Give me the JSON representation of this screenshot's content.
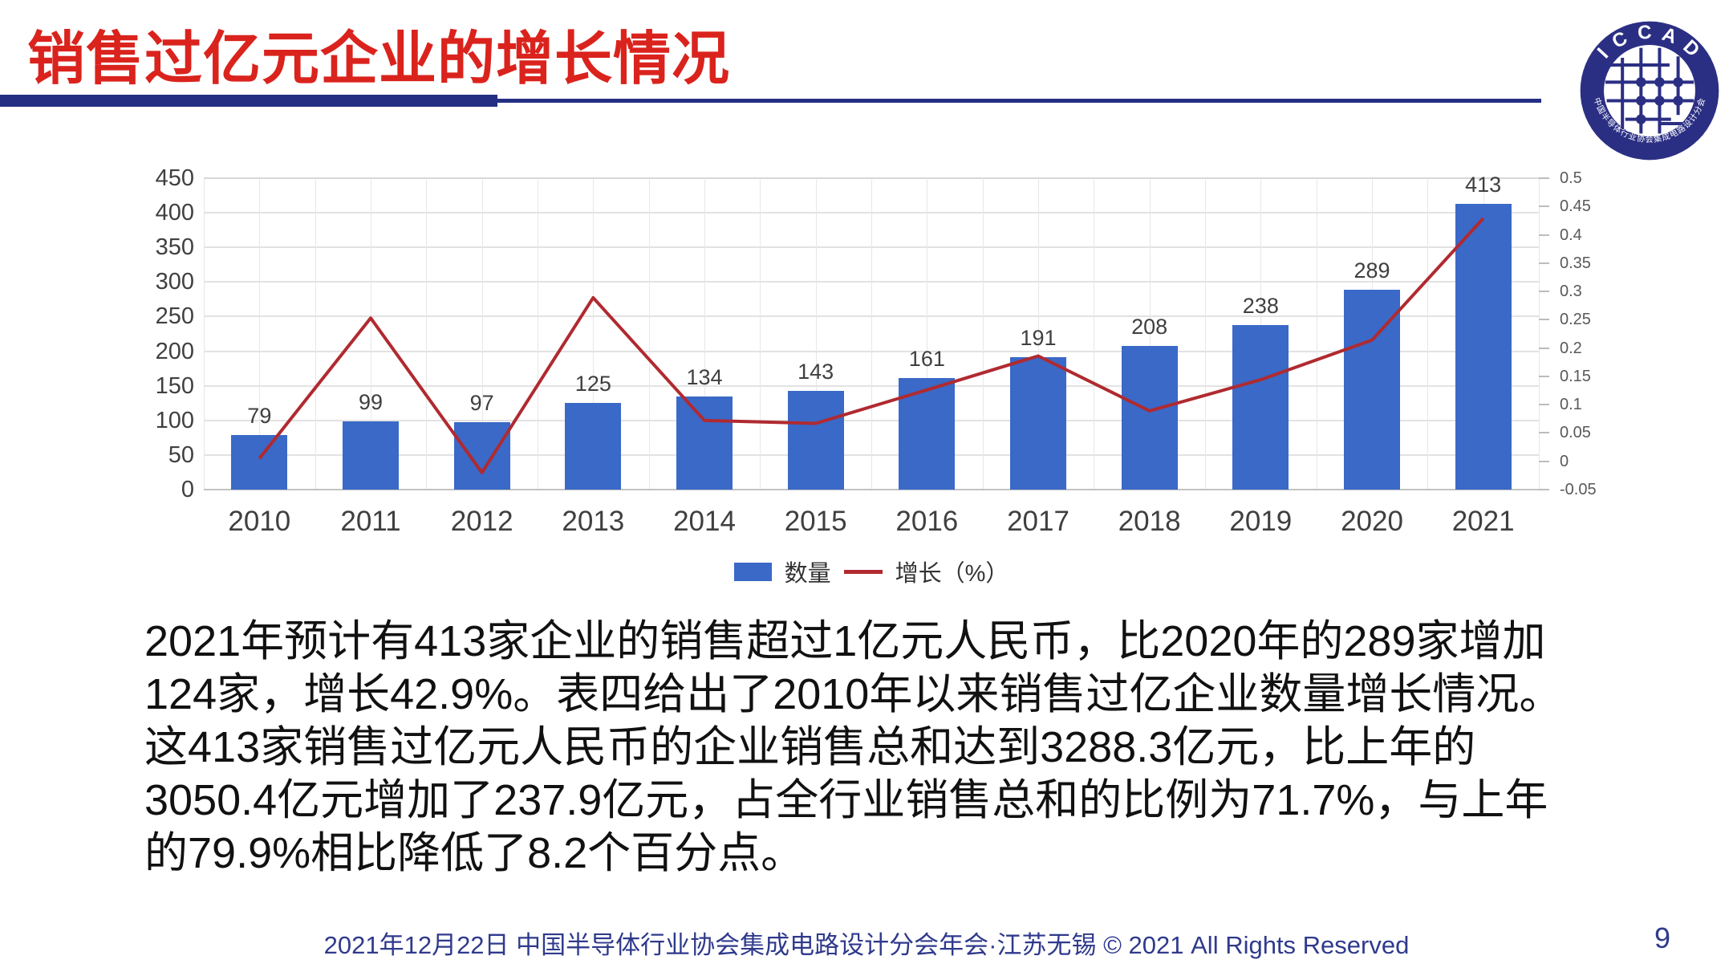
{
  "slide": {
    "title": "销售过亿元企业的增长情况",
    "footer": "2021年12月22日 中国半导体行业协会集成电路设计分会年会·江苏无锡 © 2021 All Rights Reserved",
    "page_number": "9",
    "logo": {
      "top_text": "I C C A D",
      "bottom_text": "中国半导体行业协会集成电路设计分会",
      "ring_color": "#2b2f84"
    },
    "accent_colors": {
      "title_red": "#da231d",
      "header_bar_navy": "#242e83",
      "footer_navy": "#2f3a8c"
    }
  },
  "chart_data": {
    "type": "bar+line combo",
    "categories": [
      "2010",
      "2011",
      "2012",
      "2013",
      "2014",
      "2015",
      "2016",
      "2017",
      "2018",
      "2019",
      "2020",
      "2021"
    ],
    "series": [
      {
        "name": "数量",
        "type": "bar",
        "axis": "left",
        "color": "#3a69c7",
        "values": [
          79,
          99,
          97,
          125,
          134,
          143,
          161,
          191,
          208,
          238,
          289,
          413
        ]
      },
      {
        "name": "增长（%）",
        "type": "line",
        "axis": "right",
        "color": "#b02a30",
        "values": [
          0.005,
          0.253,
          -0.02,
          0.289,
          0.072,
          0.067,
          0.126,
          0.186,
          0.089,
          0.144,
          0.214,
          0.429
        ]
      }
    ],
    "bar_data_labels": [
      "79",
      "99",
      "97",
      "125",
      "134",
      "143",
      "161",
      "191",
      "208",
      "238",
      "289",
      "413"
    ],
    "left_axis": {
      "min": 0,
      "max": 450,
      "step": 50,
      "labels": [
        "450",
        "400",
        "350",
        "300",
        "250",
        "200",
        "150",
        "100",
        "50",
        "0"
      ]
    },
    "right_axis": {
      "min": -0.05,
      "max": 0.5,
      "step": 0.05,
      "labels": [
        "0.5",
        "0.45",
        "0.4",
        "0.35",
        "0.3",
        "0.25",
        "0.2",
        "0.15",
        "0.1",
        "0.05",
        "0",
        "-0.05"
      ]
    },
    "grid": "light gray horizontal and vertical gridlines",
    "legend_position": "bottom-center"
  },
  "body": {
    "lines": [
      "2021年预计有413家企业的销售超过1亿元人民币，比2020年的289家增加",
      "124家，增长42.9%。表四给出了2010年以来销售过亿企业数量增长情况。",
      "这413家销售过亿元人民币的企业销售总和达到3288.3亿元，比上年的",
      "3050.4亿元增加了237.9亿元，占全行业销售总和的比例为71.7%，与上年",
      "的79.9%相比降低了8.2个百分点。"
    ]
  }
}
